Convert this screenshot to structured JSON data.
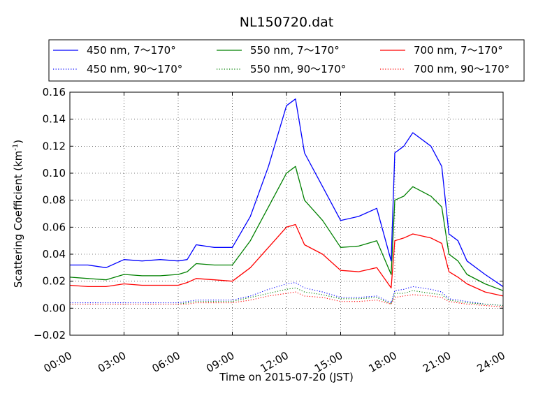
{
  "chart_data": {
    "type": "line",
    "title": "NL150720.dat",
    "xlabel": "Time on 2015-07-20 (JST)",
    "ylabel": "Scattering Coefficient (km",
    "ylabel_sup": "-1",
    "ylabel_close": ")",
    "xlim": [
      0,
      24
    ],
    "ylim": [
      -0.02,
      0.16
    ],
    "x_ticks": [
      0,
      3,
      6,
      9,
      12,
      15,
      18,
      21,
      24
    ],
    "x_tick_labels": [
      "00:00",
      "03:00",
      "06:00",
      "09:00",
      "12:00",
      "15:00",
      "18:00",
      "21:00",
      "24:00"
    ],
    "y_ticks": [
      -0.02,
      0,
      0.02,
      0.04,
      0.06,
      0.08,
      0.1,
      0.12,
      0.14,
      0.16
    ],
    "y_tick_labels": [
      "−0.02",
      "0.00",
      "0.02",
      "0.04",
      "0.06",
      "0.08",
      "0.10",
      "0.12",
      "0.14",
      "0.16"
    ],
    "grid": true,
    "legend_position": "top",
    "x": [
      0,
      1,
      2,
      3,
      4,
      5,
      6,
      6.5,
      7,
      8,
      9,
      10,
      11,
      12,
      12.5,
      13,
      14,
      15,
      16,
      17,
      17.8,
      18,
      18.5,
      19,
      20,
      20.6,
      21,
      21.5,
      22,
      23,
      24
    ],
    "series": [
      {
        "name": "450 nm, 7～170°",
        "color": "#0000ff",
        "dash": "solid",
        "values": [
          0.032,
          0.032,
          0.03,
          0.036,
          0.035,
          0.036,
          0.035,
          0.036,
          0.047,
          0.045,
          0.045,
          0.068,
          0.105,
          0.15,
          0.155,
          0.115,
          0.09,
          0.065,
          0.068,
          0.074,
          0.035,
          0.115,
          0.12,
          0.13,
          0.12,
          0.105,
          0.055,
          0.05,
          0.035,
          0.025,
          0.016
        ]
      },
      {
        "name": "550 nm, 7～170°",
        "color": "#008000",
        "dash": "solid",
        "values": [
          0.023,
          0.022,
          0.021,
          0.025,
          0.024,
          0.024,
          0.025,
          0.027,
          0.033,
          0.032,
          0.032,
          0.05,
          0.075,
          0.1,
          0.105,
          0.08,
          0.065,
          0.045,
          0.046,
          0.05,
          0.025,
          0.08,
          0.083,
          0.09,
          0.083,
          0.075,
          0.04,
          0.035,
          0.025,
          0.018,
          0.013
        ]
      },
      {
        "name": "700 nm, 7～170°",
        "color": "#ff0000",
        "dash": "solid",
        "values": [
          0.017,
          0.016,
          0.016,
          0.018,
          0.017,
          0.017,
          0.017,
          0.019,
          0.022,
          0.021,
          0.02,
          0.03,
          0.045,
          0.06,
          0.062,
          0.047,
          0.04,
          0.028,
          0.027,
          0.03,
          0.015,
          0.05,
          0.052,
          0.055,
          0.052,
          0.048,
          0.027,
          0.023,
          0.018,
          0.012,
          0.009
        ]
      },
      {
        "name": "450 nm, 90～170°",
        "color": "#0000ff",
        "dash": "dotted",
        "values": [
          0.004,
          0.004,
          0.004,
          0.004,
          0.004,
          0.004,
          0.004,
          0.005,
          0.006,
          0.006,
          0.006,
          0.009,
          0.014,
          0.018,
          0.019,
          0.015,
          0.012,
          0.008,
          0.008,
          0.009,
          0.004,
          0.013,
          0.014,
          0.016,
          0.014,
          0.012,
          0.007,
          0.006,
          0.005,
          0.003,
          0.002
        ]
      },
      {
        "name": "550 nm, 90～170°",
        "color": "#008000",
        "dash": "dotted",
        "values": [
          0.003,
          0.003,
          0.003,
          0.003,
          0.003,
          0.003,
          0.003,
          0.004,
          0.005,
          0.005,
          0.005,
          0.008,
          0.011,
          0.014,
          0.015,
          0.012,
          0.01,
          0.007,
          0.007,
          0.008,
          0.003,
          0.011,
          0.011,
          0.013,
          0.011,
          0.01,
          0.006,
          0.005,
          0.004,
          0.003,
          0.002
        ]
      },
      {
        "name": "700 nm, 90～170°",
        "color": "#ff0000",
        "dash": "dotted",
        "values": [
          0.003,
          0.003,
          0.003,
          0.003,
          0.003,
          0.003,
          0.003,
          0.003,
          0.004,
          0.004,
          0.004,
          0.006,
          0.009,
          0.011,
          0.012,
          0.009,
          0.008,
          0.005,
          0.005,
          0.006,
          0.003,
          0.008,
          0.009,
          0.01,
          0.009,
          0.008,
          0.005,
          0.004,
          0.003,
          0.002,
          0.001
        ]
      }
    ]
  }
}
